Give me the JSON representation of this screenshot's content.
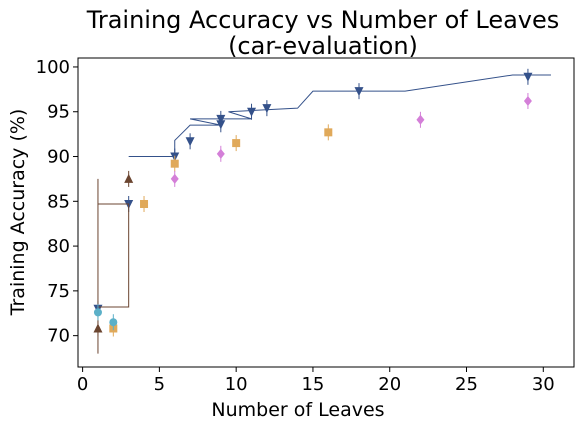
{
  "chart_data": {
    "type": "scatter",
    "title_line1": "Training Accuracy vs Number of Leaves",
    "title_line2": "(car-evaluation)",
    "xlabel": "Number of Leaves",
    "ylabel": "Training Accuracy (%)",
    "xlim": [
      -0.3,
      32
    ],
    "ylim": [
      66.5,
      101
    ],
    "xticks": [
      0,
      5,
      10,
      15,
      20,
      25,
      30
    ],
    "yticks": [
      70,
      75,
      80,
      85,
      90,
      95,
      100
    ],
    "grid": false,
    "series": [
      {
        "marker": "triangle-down",
        "color": "#34518a",
        "points": [
          {
            "x": 1,
            "y": 73.0
          },
          {
            "x": 3,
            "y": 84.7
          },
          {
            "x": 6,
            "y": 90.0
          },
          {
            "x": 7,
            "y": 91.7
          },
          {
            "x": 9,
            "y": 93.6
          },
          {
            "x": 9,
            "y": 94.2
          },
          {
            "x": 11,
            "y": 95.0
          },
          {
            "x": 12,
            "y": 95.4
          },
          {
            "x": 18,
            "y": 97.3
          },
          {
            "x": 29,
            "y": 98.9
          }
        ],
        "step_line": [
          [
            3,
            90.0
          ],
          [
            6,
            90.0
          ],
          [
            6,
            91.8
          ],
          [
            7,
            93.5
          ],
          [
            9,
            93.5
          ],
          [
            7,
            94.2
          ],
          [
            11,
            94.2
          ],
          [
            9.5,
            95.0
          ],
          [
            14,
            95.4
          ],
          [
            15,
            97.3
          ],
          [
            21,
            97.3
          ],
          [
            28,
            99.1
          ],
          [
            30.5,
            99.1
          ]
        ]
      },
      {
        "marker": "triangle-up",
        "color": "#6b4530",
        "points": [
          {
            "x": 1,
            "y": 70.8
          },
          {
            "x": 3,
            "y": 87.5
          }
        ],
        "step_line": [
          [
            1,
            68.0
          ],
          [
            1,
            87.5
          ],
          [
            1,
            73.2
          ],
          [
            3,
            73.2
          ],
          [
            3,
            84.7
          ],
          [
            1,
            84.7
          ]
        ]
      },
      {
        "marker": "square",
        "color": "#e0a95a",
        "points": [
          {
            "x": 2,
            "y": 70.8
          },
          {
            "x": 4,
            "y": 84.7
          },
          {
            "x": 6,
            "y": 89.2
          },
          {
            "x": 10,
            "y": 91.5
          },
          {
            "x": 16,
            "y": 92.7
          }
        ]
      },
      {
        "marker": "diamond",
        "color": "#d47fd8",
        "points": [
          {
            "x": 6,
            "y": 87.5
          },
          {
            "x": 9,
            "y": 90.3
          },
          {
            "x": 22,
            "y": 94.1
          },
          {
            "x": 29,
            "y": 96.2
          }
        ]
      },
      {
        "marker": "circle",
        "color": "#5bb0c8",
        "points": [
          {
            "x": 1,
            "y": 72.6
          },
          {
            "x": 2,
            "y": 71.5
          }
        ]
      }
    ]
  }
}
